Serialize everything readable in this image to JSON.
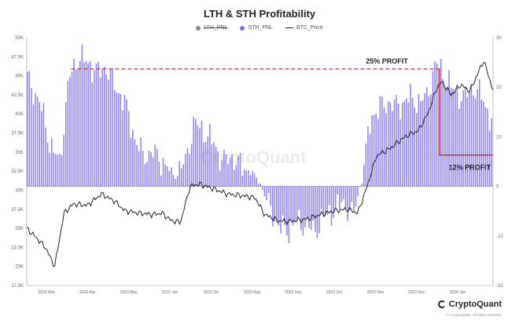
{
  "title": "LTH & STH Profitability",
  "legend": {
    "lth_pnl": "LTH_PNL",
    "sth_pnl": "STH_PNL",
    "btc_price": "BTC_Price",
    "colors": {
      "lth_pnl": "#888888",
      "sth_pnl": "#7b6cf0",
      "btc_price": "#222222"
    }
  },
  "annotations": {
    "profit_high": "25% PROFIT",
    "profit_low": "12% PROFIT"
  },
  "watermark": "CryptoQuant",
  "brand": "CryptoQuant",
  "copyright": "© CryptoQuant. All rights reserved.",
  "chart_data": {
    "type": "bar",
    "title": "LTH & STH Profitability",
    "left_axis": {
      "ticks": [
        "17.5K",
        "20K",
        "22.5K",
        "25K",
        "27.5K",
        "30K",
        "32.5K",
        "35K",
        "37.5K",
        "40K",
        "42.5K",
        "45K",
        "47.5K",
        "50K"
      ],
      "ylim": [
        17500,
        50000
      ]
    },
    "right_axis": {
      "ticks": [
        "-20",
        "-10",
        "0",
        "10",
        "20",
        "30"
      ],
      "ylim": [
        -20,
        30
      ]
    },
    "x_ticks": [
      "2023 Mar",
      "2023 Apr",
      "2023 May",
      "2023 Jun",
      "2023 Jul",
      "2023 Aug",
      "2023 Sep",
      "2023 Oct",
      "2023 Nov",
      "2023 Dec",
      "2024 Jan"
    ],
    "grid": false,
    "series": [
      {
        "name": "STH_PNL",
        "type": "bar",
        "axis": "right",
        "color": "#7b6cf0",
        "anchors": [
          [
            0,
            22
          ],
          [
            0.03,
            16
          ],
          [
            0.05,
            8
          ],
          [
            0.07,
            5
          ],
          [
            0.09,
            22
          ],
          [
            0.11,
            26
          ],
          [
            0.13,
            25
          ],
          [
            0.15,
            23
          ],
          [
            0.17,
            24
          ],
          [
            0.19,
            20
          ],
          [
            0.21,
            17
          ],
          [
            0.23,
            10
          ],
          [
            0.25,
            6
          ],
          [
            0.27,
            7
          ],
          [
            0.3,
            4
          ],
          [
            0.32,
            2
          ],
          [
            0.34,
            5
          ],
          [
            0.36,
            13
          ],
          [
            0.38,
            11
          ],
          [
            0.4,
            9
          ],
          [
            0.42,
            5
          ],
          [
            0.44,
            6
          ],
          [
            0.46,
            4
          ],
          [
            0.48,
            3
          ],
          [
            0.5,
            1
          ],
          [
            0.52,
            -4
          ],
          [
            0.54,
            -8
          ],
          [
            0.56,
            -9
          ],
          [
            0.58,
            -7
          ],
          [
            0.6,
            -8
          ],
          [
            0.62,
            -9
          ],
          [
            0.64,
            -6
          ],
          [
            0.66,
            -5
          ],
          [
            0.68,
            -3
          ],
          [
            0.7,
            -6
          ],
          [
            0.72,
            1
          ],
          [
            0.74,
            14
          ],
          [
            0.76,
            16
          ],
          [
            0.78,
            17
          ],
          [
            0.8,
            16
          ],
          [
            0.82,
            18
          ],
          [
            0.84,
            17
          ],
          [
            0.86,
            18
          ],
          [
            0.88,
            25
          ],
          [
            0.9,
            22
          ],
          [
            0.92,
            19
          ],
          [
            0.94,
            18
          ],
          [
            0.96,
            20
          ],
          [
            0.98,
            18
          ],
          [
            1.0,
            13
          ]
        ]
      },
      {
        "name": "BTC_Price",
        "type": "line",
        "axis": "left",
        "color": "#222222",
        "anchors": [
          [
            0,
            25000
          ],
          [
            0.02,
            23800
          ],
          [
            0.04,
            22500
          ],
          [
            0.06,
            20000
          ],
          [
            0.08,
            27000
          ],
          [
            0.1,
            28200
          ],
          [
            0.13,
            28000
          ],
          [
            0.16,
            29500
          ],
          [
            0.19,
            28500
          ],
          [
            0.21,
            27300
          ],
          [
            0.24,
            27000
          ],
          [
            0.27,
            26800
          ],
          [
            0.29,
            27000
          ],
          [
            0.31,
            26000
          ],
          [
            0.33,
            25800
          ],
          [
            0.35,
            30500
          ],
          [
            0.37,
            30800
          ],
          [
            0.4,
            30200
          ],
          [
            0.43,
            29500
          ],
          [
            0.46,
            29300
          ],
          [
            0.49,
            29000
          ],
          [
            0.51,
            26800
          ],
          [
            0.54,
            26000
          ],
          [
            0.56,
            25900
          ],
          [
            0.6,
            26200
          ],
          [
            0.63,
            26800
          ],
          [
            0.66,
            27300
          ],
          [
            0.69,
            27500
          ],
          [
            0.71,
            27000
          ],
          [
            0.73,
            30500
          ],
          [
            0.75,
            34500
          ],
          [
            0.78,
            35500
          ],
          [
            0.8,
            36500
          ],
          [
            0.82,
            37300
          ],
          [
            0.84,
            37800
          ],
          [
            0.86,
            40000
          ],
          [
            0.88,
            43500
          ],
          [
            0.89,
            44200
          ],
          [
            0.91,
            42500
          ],
          [
            0.93,
            43800
          ],
          [
            0.95,
            43000
          ],
          [
            0.96,
            44300
          ],
          [
            0.98,
            47000
          ],
          [
            1.0,
            43100
          ]
        ]
      }
    ]
  }
}
